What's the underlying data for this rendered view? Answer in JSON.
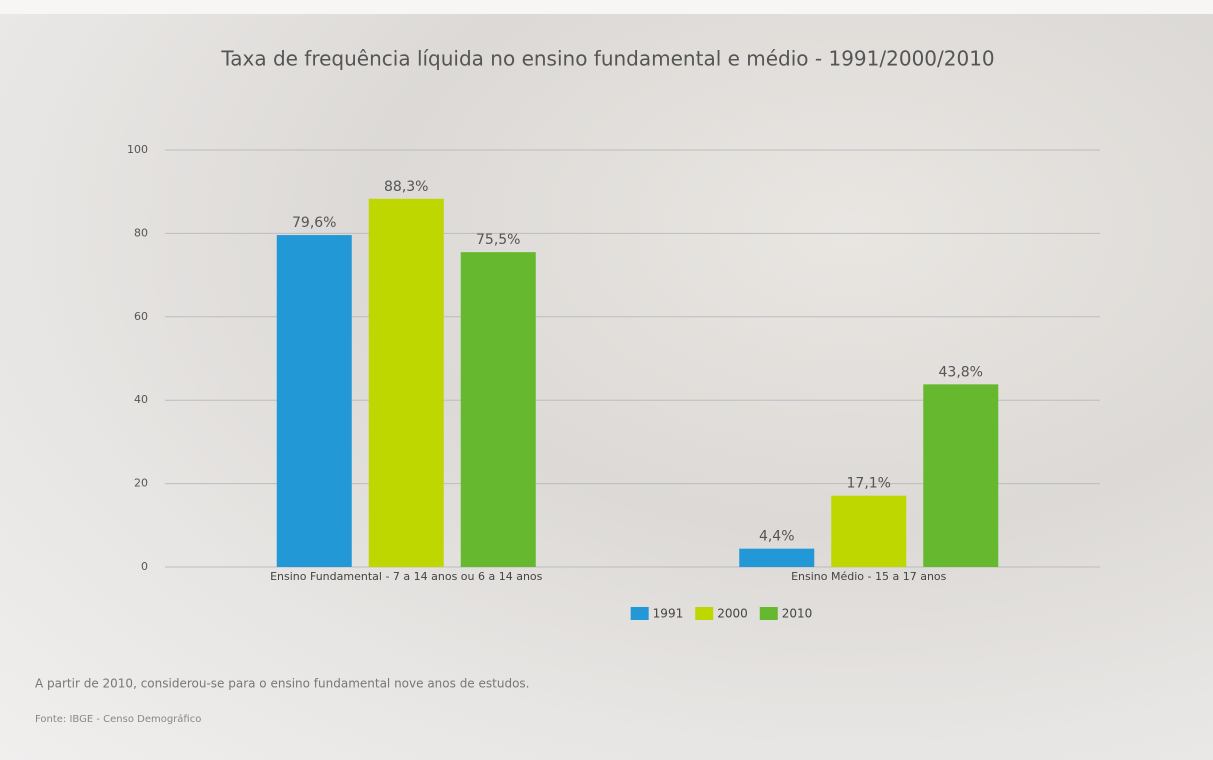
{
  "chart_data": {
    "type": "bar",
    "title": "Taxa de frequência líquida no ensino fundamental e médio - 1991/2000/2010",
    "categories": [
      "Ensino Fundamental - 7 a 14 anos ou 6 a 14 anos",
      "Ensino Médio - 15 a 17 anos"
    ],
    "series": [
      {
        "name": "1991",
        "color": "#2398d6",
        "values": [
          79.6,
          4.4
        ],
        "value_labels": [
          "79,6%",
          "4,4%"
        ]
      },
      {
        "name": "2000",
        "color": "#bfd700",
        "values": [
          88.3,
          17.1
        ],
        "value_labels": [
          "88,3%",
          "17,1%"
        ]
      },
      {
        "name": "2010",
        "color": "#66b82e",
        "values": [
          75.5,
          43.8
        ],
        "value_labels": [
          "75,5%",
          "43,8%"
        ]
      }
    ],
    "ylim": [
      0,
      110
    ],
    "yticks": [
      0,
      20,
      40,
      60,
      80,
      100
    ],
    "grid": true,
    "legend": "bottom",
    "note": "A partir de 2010, considerou-se para o ensino fundamental nove anos de estudos.",
    "source": "Fonte: IBGE - Censo Demográfico"
  }
}
